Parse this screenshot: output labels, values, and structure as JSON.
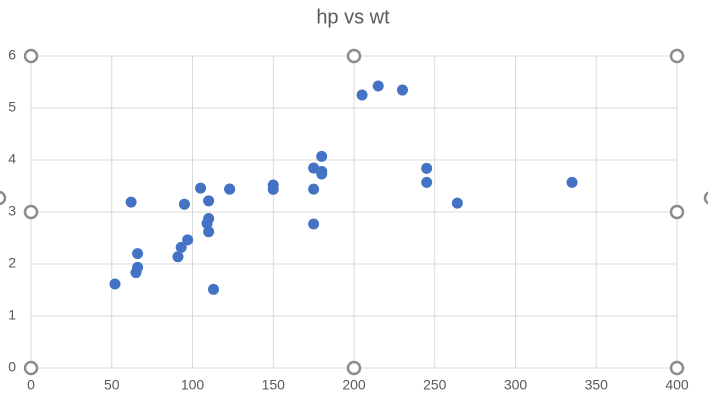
{
  "chart_data": {
    "type": "scatter",
    "title": "hp vs wt",
    "x": [
      110,
      110,
      93,
      110,
      175,
      105,
      245,
      62,
      95,
      123,
      123,
      180,
      180,
      180,
      205,
      215,
      230,
      66,
      52,
      65,
      97,
      150,
      150,
      245,
      175,
      66,
      91,
      113,
      264,
      175,
      335,
      109
    ],
    "values": [
      2.62,
      2.875,
      2.32,
      3.215,
      3.44,
      3.46,
      3.57,
      3.19,
      3.15,
      3.44,
      3.44,
      4.07,
      3.73,
      3.78,
      5.25,
      5.424,
      5.345,
      2.2,
      1.615,
      1.835,
      2.465,
      3.52,
      3.435,
      3.84,
      3.845,
      1.935,
      2.14,
      1.513,
      3.17,
      2.77,
      3.57,
      2.78
    ],
    "color": "#4472c4",
    "xlim": [
      0,
      400
    ],
    "xticks": [
      0,
      50,
      100,
      150,
      200,
      250,
      300,
      350,
      400
    ],
    "ylim": [
      0,
      6
    ],
    "yticks": [
      0,
      1,
      2,
      3,
      4,
      5,
      6
    ],
    "grid": true
  }
}
